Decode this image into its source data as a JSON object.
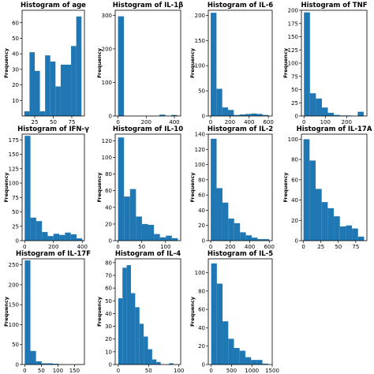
{
  "colors": {
    "bar": "#1f77b4",
    "axis": "#000000"
  },
  "chart_data": [
    {
      "type": "bar",
      "title": "Histogram of age",
      "ylabel": "Frequency",
      "xlabel": "",
      "xlim": [
        8,
        92
      ],
      "ylim": [
        0,
        68
      ],
      "xticks": [
        25,
        50,
        75
      ],
      "yticks": [
        10,
        20,
        30,
        40,
        50,
        60
      ],
      "bins": [
        [
          11,
          18,
          3
        ],
        [
          18,
          25,
          41
        ],
        [
          25,
          32,
          29
        ],
        [
          32,
          39,
          3
        ],
        [
          39,
          46,
          39
        ],
        [
          46,
          53,
          35
        ],
        [
          53,
          60,
          19
        ],
        [
          60,
          67,
          33
        ],
        [
          67,
          74,
          33
        ],
        [
          74,
          81,
          45
        ],
        [
          81,
          88,
          64
        ]
      ]
    },
    {
      "type": "bar",
      "title": "Histogram of IL-1β",
      "ylabel": "Frequency",
      "xlabel": "",
      "xlim": [
        -20,
        445
      ],
      "ylim": [
        0,
        315
      ],
      "xticks": [
        0,
        200,
        400
      ],
      "yticks": [
        0,
        100,
        200,
        300
      ],
      "bins": [
        [
          0,
          42,
          297
        ],
        [
          42,
          84,
          0
        ],
        [
          84,
          126,
          0
        ],
        [
          126,
          168,
          0
        ],
        [
          168,
          210,
          0
        ],
        [
          210,
          252,
          0
        ],
        [
          252,
          294,
          0
        ],
        [
          294,
          336,
          4
        ],
        [
          336,
          378,
          0
        ],
        [
          378,
          420,
          3
        ]
      ]
    },
    {
      "type": "bar",
      "title": "Histogram of IL-6",
      "ylabel": "Frequency",
      "xlabel": "",
      "xlim": [
        -25,
        640
      ],
      "ylim": [
        0,
        210
      ],
      "xticks": [
        0,
        200,
        400,
        600
      ],
      "yticks": [
        0,
        50,
        100,
        150,
        200
      ],
      "bins": [
        [
          0,
          60,
          205
        ],
        [
          60,
          120,
          54
        ],
        [
          120,
          180,
          17
        ],
        [
          180,
          240,
          12
        ],
        [
          240,
          300,
          2
        ],
        [
          300,
          360,
          3
        ],
        [
          360,
          420,
          4
        ],
        [
          420,
          480,
          5
        ],
        [
          480,
          540,
          4
        ],
        [
          540,
          600,
          2
        ]
      ]
    },
    {
      "type": "bar",
      "title": "Histogram of TNF",
      "ylabel": "Frequency",
      "xlabel": "",
      "xlim": [
        -12,
        295
      ],
      "ylim": [
        0,
        200
      ],
      "xticks": [
        0,
        100,
        200
      ],
      "yticks": [
        0,
        25,
        50,
        75,
        100,
        125,
        150,
        175,
        200
      ],
      "bins": [
        [
          0,
          28,
          196
        ],
        [
          28,
          56,
          43
        ],
        [
          56,
          84,
          33
        ],
        [
          84,
          112,
          16
        ],
        [
          112,
          140,
          6
        ],
        [
          140,
          168,
          2
        ],
        [
          168,
          196,
          1
        ],
        [
          196,
          224,
          1
        ],
        [
          224,
          252,
          0
        ],
        [
          252,
          280,
          8
        ]
      ]
    },
    {
      "type": "bar",
      "title": "Histogram of IFN-γ",
      "ylabel": "Frequency",
      "xlabel": "",
      "xlim": [
        -18,
        415
      ],
      "ylim": [
        0,
        185
      ],
      "xticks": [
        0,
        200,
        400
      ],
      "yticks": [
        0,
        25,
        50,
        75,
        100,
        125,
        150,
        175
      ],
      "bins": [
        [
          0,
          40,
          182
        ],
        [
          40,
          80,
          40
        ],
        [
          80,
          120,
          34
        ],
        [
          120,
          160,
          15
        ],
        [
          160,
          200,
          8
        ],
        [
          200,
          240,
          12
        ],
        [
          240,
          280,
          10
        ],
        [
          280,
          320,
          14
        ],
        [
          320,
          360,
          11
        ],
        [
          360,
          400,
          4
        ]
      ]
    },
    {
      "type": "bar",
      "title": "Histogram of IL-10",
      "ylabel": "Frequency",
      "xlabel": "",
      "xlim": [
        -6,
        132
      ],
      "ylim": [
        0,
        128
      ],
      "xticks": [
        0,
        50,
        100
      ],
      "yticks": [
        0,
        20,
        40,
        60,
        80,
        100,
        120
      ],
      "bins": [
        [
          0,
          12.6,
          124
        ],
        [
          12.6,
          25.2,
          53
        ],
        [
          25.2,
          37.8,
          62
        ],
        [
          37.8,
          50.4,
          29
        ],
        [
          50.4,
          63,
          20
        ],
        [
          63,
          75.6,
          19
        ],
        [
          75.6,
          88.2,
          8
        ],
        [
          88.2,
          100.8,
          4
        ],
        [
          100.8,
          113.4,
          6
        ],
        [
          113.4,
          126,
          3
        ]
      ]
    },
    {
      "type": "bar",
      "title": "Histogram of IL-2",
      "ylabel": "Frequency",
      "xlabel": "",
      "xlim": [
        -25,
        630
      ],
      "ylim": [
        0,
        140
      ],
      "xticks": [
        0,
        200,
        400,
        600
      ],
      "yticks": [
        0,
        20,
        40,
        60,
        80,
        100,
        120,
        140
      ],
      "bins": [
        [
          0,
          60,
          134
        ],
        [
          60,
          120,
          69
        ],
        [
          120,
          180,
          50
        ],
        [
          180,
          240,
          29
        ],
        [
          240,
          300,
          23
        ],
        [
          300,
          360,
          11
        ],
        [
          360,
          420,
          7
        ],
        [
          420,
          480,
          4
        ],
        [
          480,
          540,
          2
        ],
        [
          540,
          600,
          2
        ]
      ]
    },
    {
      "type": "bar",
      "title": "Histogram of IL-17A",
      "ylabel": "Frequency",
      "xlabel": "",
      "xlim": [
        -3,
        91
      ],
      "ylim": [
        0,
        105
      ],
      "xticks": [
        0,
        25,
        50,
        75
      ],
      "yticks": [
        0,
        20,
        40,
        60,
        80,
        100
      ],
      "bins": [
        [
          0,
          8.7,
          100
        ],
        [
          8.7,
          17.4,
          79
        ],
        [
          17.4,
          26.1,
          51
        ],
        [
          26.1,
          34.8,
          38
        ],
        [
          34.8,
          43.5,
          32
        ],
        [
          43.5,
          52.2,
          24
        ],
        [
          52.2,
          60.9,
          14
        ],
        [
          60.9,
          69.6,
          15
        ],
        [
          69.6,
          78.3,
          12
        ],
        [
          78.3,
          87,
          4
        ]
      ]
    },
    {
      "type": "bar",
      "title": "Histogram of IL-17F",
      "ylabel": "Frequency",
      "xlabel": "",
      "xlim": [
        -8,
        180
      ],
      "ylim": [
        0,
        265
      ],
      "xticks": [
        0,
        50,
        100,
        150
      ],
      "yticks": [
        0,
        50,
        100,
        150,
        200,
        250
      ],
      "bins": [
        [
          0,
          17,
          261
        ],
        [
          17,
          34,
          34
        ],
        [
          34,
          51,
          8
        ],
        [
          51,
          68,
          3
        ],
        [
          68,
          85,
          3
        ],
        [
          85,
          102,
          2
        ],
        [
          102,
          119,
          1
        ],
        [
          119,
          136,
          0
        ],
        [
          136,
          153,
          0
        ],
        [
          153,
          170,
          1
        ]
      ]
    },
    {
      "type": "bar",
      "title": "Histogram of IL-4",
      "ylabel": "Frequency",
      "xlabel": "",
      "xlim": [
        -5,
        103
      ],
      "ylim": [
        0,
        83
      ],
      "xticks": [
        0,
        50,
        100
      ],
      "yticks": [
        0,
        10,
        20,
        30,
        40,
        50,
        60,
        70,
        80
      ],
      "bins": [
        [
          0,
          7,
          52
        ],
        [
          7,
          14,
          76
        ],
        [
          14,
          21,
          78
        ],
        [
          21,
          28,
          56
        ],
        [
          28,
          35,
          45
        ],
        [
          35,
          42,
          32
        ],
        [
          42,
          49,
          22
        ],
        [
          49,
          56,
          12
        ],
        [
          56,
          63,
          4
        ],
        [
          63,
          70,
          2
        ],
        [
          70,
          77,
          0
        ],
        [
          77,
          84,
          0
        ],
        [
          84,
          91,
          1
        ]
      ]
    },
    {
      "type": "bar",
      "title": "Histogram of IL-5",
      "ylabel": "Frequency",
      "xlabel": "",
      "xlim": [
        -70,
        1500
      ],
      "ylim": [
        0,
        115
      ],
      "xticks": [
        0,
        500,
        1000,
        1500
      ],
      "yticks": [
        0,
        20,
        40,
        60,
        80,
        100
      ],
      "bins": [
        [
          0,
          140,
          110
        ],
        [
          140,
          280,
          88
        ],
        [
          280,
          420,
          47
        ],
        [
          420,
          560,
          28
        ],
        [
          560,
          700,
          18
        ],
        [
          700,
          840,
          15
        ],
        [
          840,
          980,
          8
        ],
        [
          980,
          1120,
          5
        ],
        [
          1120,
          1260,
          5
        ],
        [
          1260,
          1400,
          1
        ]
      ]
    }
  ]
}
